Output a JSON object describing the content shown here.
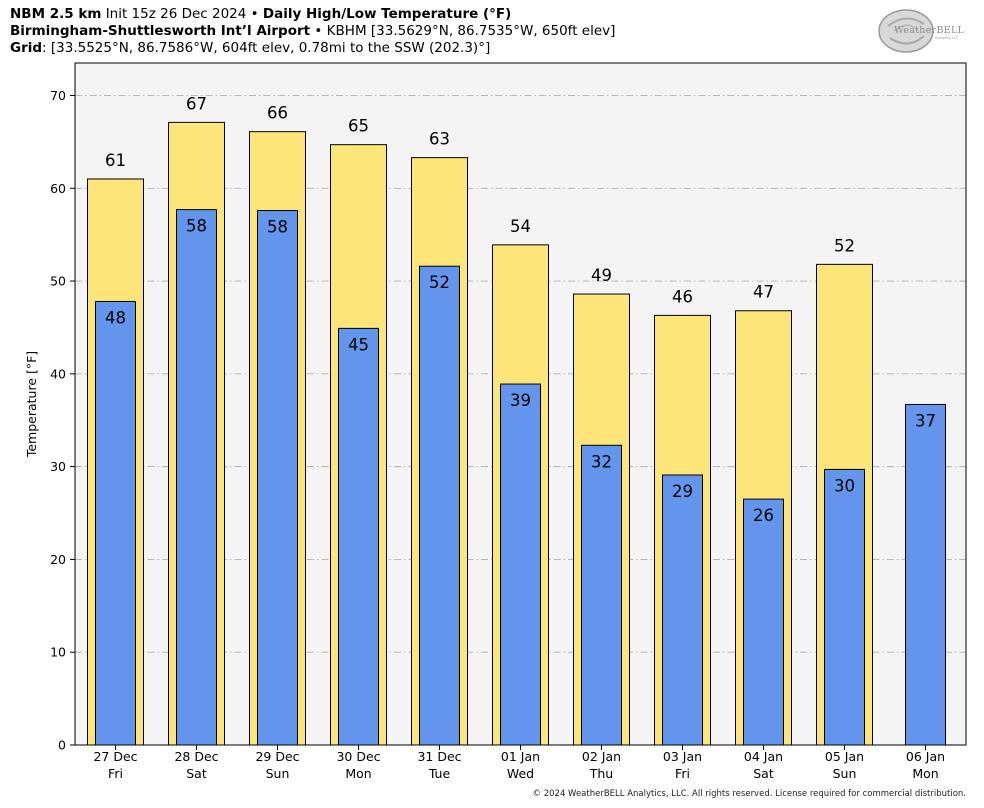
{
  "header": {
    "line1_bold": "NBM 2.5 km",
    "line1_init": "Init 15z 26 Dec 2024",
    "line1_sep": "•",
    "line1_title": "Daily High/Low Temperature (°F)",
    "line2_bold": "Birmingham-Shuttlesworth Int’l Airport",
    "line2_sep": "•",
    "line2_rest": "KBHM [33.5629°N, 86.7535°W, 650ft elev]",
    "line3_bold": "Grid",
    "line3_rest": ": [33.5525°N, 86.7586°W, 604ft elev, 0.78mi to the SSW (202.3)°]"
  },
  "logo": {
    "text": "WeatherBELL",
    "sub": "Analytics LLC"
  },
  "copyright": "© 2024 WeatherBELL Analytics, LLC. All rights reserved. License required for commercial distribution.",
  "colors": {
    "high": "#fde57a",
    "low": "#6495ed",
    "plot_bg": "#f4f4f4",
    "grid": "#b0b0b0"
  },
  "chart_data": {
    "type": "bar",
    "ylabel": "Temperature [°F]",
    "ylim": [
      0,
      73.5
    ],
    "yticks": [
      0,
      10,
      20,
      30,
      40,
      50,
      60,
      70
    ],
    "grid": "horizontal dashed",
    "categories": [
      {
        "date": "27 Dec",
        "day": "Fri"
      },
      {
        "date": "28 Dec",
        "day": "Sat"
      },
      {
        "date": "29 Dec",
        "day": "Sun"
      },
      {
        "date": "30 Dec",
        "day": "Mon"
      },
      {
        "date": "31 Dec",
        "day": "Tue"
      },
      {
        "date": "01 Jan",
        "day": "Wed"
      },
      {
        "date": "02 Jan",
        "day": "Thu"
      },
      {
        "date": "03 Jan",
        "day": "Fri"
      },
      {
        "date": "04 Jan",
        "day": "Sat"
      },
      {
        "date": "05 Jan",
        "day": "Sun"
      },
      {
        "date": "06 Jan",
        "day": "Mon"
      }
    ],
    "series": [
      {
        "key": "high",
        "values": [
          61,
          67,
          66,
          65,
          63,
          54,
          49,
          46,
          47,
          52,
          null
        ],
        "raw": [
          61.0,
          67.1,
          66.1,
          64.7,
          63.3,
          53.9,
          48.6,
          46.3,
          46.8,
          51.8,
          null
        ]
      },
      {
        "key": "low",
        "values": [
          48,
          58,
          58,
          45,
          52,
          39,
          32,
          29,
          26,
          30,
          37
        ],
        "raw": [
          47.8,
          57.7,
          57.6,
          44.9,
          51.6,
          38.9,
          32.3,
          29.1,
          26.5,
          29.7,
          36.7
        ]
      }
    ]
  }
}
